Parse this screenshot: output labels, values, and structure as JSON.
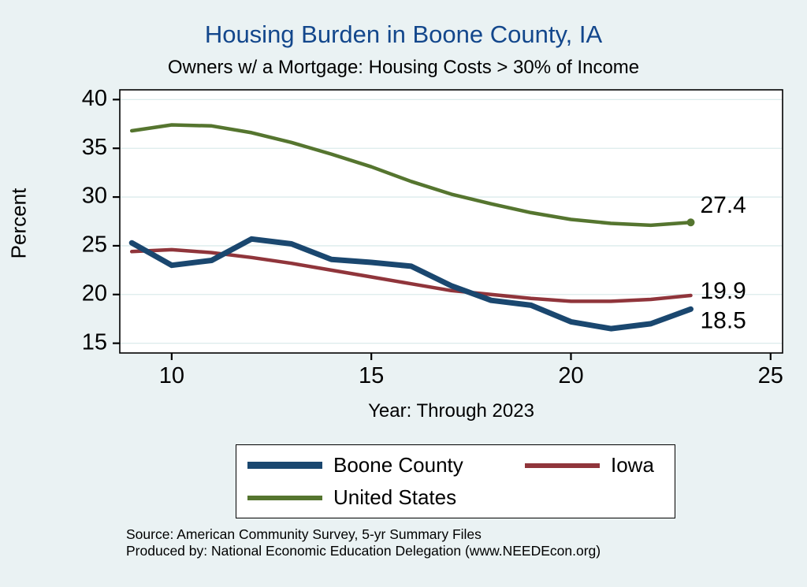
{
  "title": "Housing Burden in Boone County, IA",
  "subtitle": "Owners w/ a Mortgage: Housing Costs > 30% of Income",
  "chart_data": {
    "type": "line",
    "title": "Housing Burden in Boone County, IA",
    "subtitle": "Owners w/ a Mortgage: Housing Costs > 30% of Income",
    "xlabel": "Year: Through 2023",
    "ylabel": "Percent",
    "x": [
      9,
      10,
      11,
      12,
      13,
      14,
      15,
      16,
      17,
      18,
      19,
      20,
      21,
      22,
      23
    ],
    "series": [
      {
        "name": "Boone County",
        "color": "#1a476f",
        "values": [
          25.3,
          23.0,
          23.5,
          25.7,
          25.2,
          23.6,
          23.3,
          22.9,
          20.9,
          19.4,
          18.9,
          17.2,
          16.5,
          17.0,
          18.5
        ],
        "end_label": "18.5"
      },
      {
        "name": "Iowa",
        "color": "#90353b",
        "values": [
          24.4,
          24.6,
          24.3,
          23.8,
          23.2,
          22.5,
          21.8,
          21.1,
          20.4,
          20.0,
          19.6,
          19.3,
          19.3,
          19.5,
          19.9
        ],
        "end_label": "19.9"
      },
      {
        "name": "United States",
        "color": "#55752f",
        "values": [
          36.8,
          37.4,
          37.3,
          36.6,
          35.6,
          34.4,
          33.1,
          31.6,
          30.3,
          29.3,
          28.4,
          27.7,
          27.3,
          27.1,
          27.4
        ],
        "end_label": "27.4"
      }
    ],
    "xticks": [
      10,
      15,
      20,
      25
    ],
    "yticks": [
      15,
      20,
      25,
      30,
      35,
      40
    ],
    "xlim": [
      8.7,
      25.3
    ],
    "ylim": [
      14,
      41
    ],
    "grid": true,
    "legend_position": "bottom"
  },
  "notes": {
    "source": "Source: American Community Survey, 5-yr Summary Files",
    "produced_by": "Produced by: National Economic Education Delegation (www.NEEDEcon.org)"
  },
  "colors": {
    "background": "#eaf2f3",
    "title": "#13478c",
    "plot_background": "#ffffff",
    "axis": "#000000",
    "gridline": "#dcebec",
    "boone_county": "#1a476f",
    "iowa": "#90353b",
    "united_states": "#55752f"
  }
}
